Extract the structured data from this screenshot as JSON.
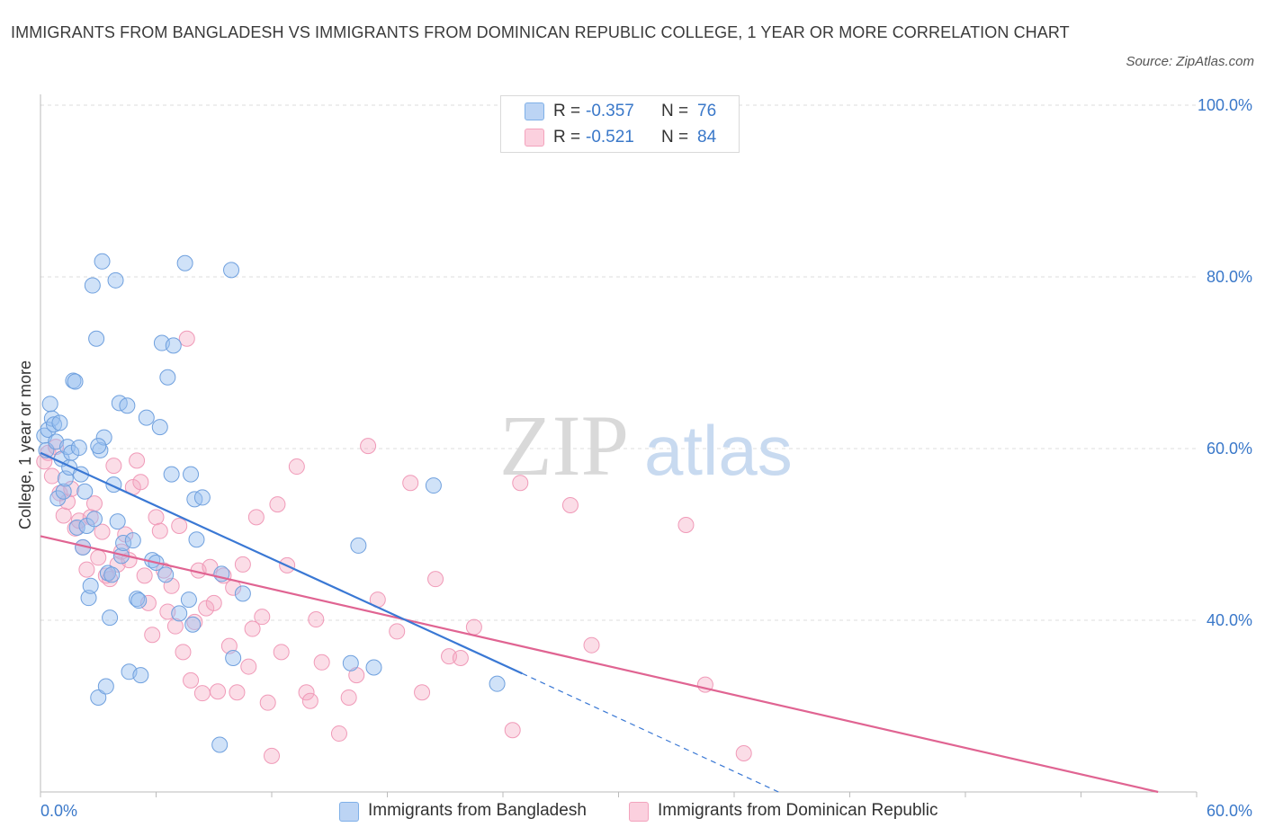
{
  "title": "IMMIGRANTS FROM BANGLADESH VS IMMIGRANTS FROM DOMINICAN REPUBLIC COLLEGE, 1 YEAR OR MORE CORRELATION CHART",
  "source": "Source: ZipAtlas.com",
  "watermark": {
    "zip": "ZIP",
    "atlas": "atlas"
  },
  "legend": {
    "rows": [
      {
        "r_label": "R =",
        "r_value": "-0.357",
        "n_label": "N =",
        "n_value": "76",
        "color": "#7fb0e8"
      },
      {
        "r_label": "R =",
        "r_value": "-0.521",
        "n_label": "N =",
        "n_value": "84",
        "color": "#f3a3bd"
      }
    ]
  },
  "colors": {
    "blue": "#3a78d4",
    "blue_fill": "rgba(150,190,240,0.45)",
    "pink": "#e06492",
    "pink_fill": "rgba(245,170,195,0.40)",
    "axis_label": "#3a78c9",
    "grid": "#dddddd"
  },
  "chart_data": {
    "type": "scatter",
    "title": "IMMIGRANTS FROM BANGLADESH VS IMMIGRANTS FROM DOMINICAN REPUBLIC COLLEGE, 1 YEAR OR MORE CORRELATION CHART",
    "xlabel": "",
    "ylabel": "College, 1 year or more",
    "xlim": [
      0,
      60
    ],
    "ylim": [
      20,
      100
    ],
    "x_tick_labels": [
      {
        "value": 0,
        "label": "0.0%"
      },
      {
        "value": 60,
        "label": "60.0%"
      }
    ],
    "y_tick_labels": [
      {
        "value": 100,
        "label": "100.0%"
      },
      {
        "value": 80,
        "label": "80.0%"
      },
      {
        "value": 60,
        "label": "60.0%"
      },
      {
        "value": 40,
        "label": "40.0%"
      }
    ],
    "grid": true,
    "legend_position": "bottom-center",
    "series": [
      {
        "name": "Immigrants from Bangladesh",
        "color": "#3a78d4",
        "trend": {
          "x": [
            0,
            25,
            38.3
          ],
          "y": [
            59.5,
            33.8,
            20
          ]
        },
        "points": [
          [
            0.2,
            61.5
          ],
          [
            0.3,
            59.8
          ],
          [
            0.4,
            62.2
          ],
          [
            0.5,
            65.2
          ],
          [
            0.6,
            63.5
          ],
          [
            0.7,
            62.8
          ],
          [
            0.8,
            60.8
          ],
          [
            0.9,
            54.2
          ],
          [
            1.0,
            63.0
          ],
          [
            1.1,
            58.8
          ],
          [
            1.2,
            55.0
          ],
          [
            1.3,
            56.5
          ],
          [
            1.4,
            60.2
          ],
          [
            1.5,
            57.8
          ],
          [
            1.6,
            59.5
          ],
          [
            1.7,
            67.9
          ],
          [
            1.8,
            67.8
          ],
          [
            1.9,
            50.8
          ],
          [
            2.0,
            60.1
          ],
          [
            2.1,
            57.0
          ],
          [
            2.2,
            48.5
          ],
          [
            2.3,
            55.0
          ],
          [
            2.4,
            51.0
          ],
          [
            2.5,
            42.6
          ],
          [
            2.6,
            44.0
          ],
          [
            2.7,
            79.0
          ],
          [
            2.8,
            51.8
          ],
          [
            2.9,
            72.8
          ],
          [
            3.0,
            31.0
          ],
          [
            3.1,
            59.8
          ],
          [
            3.2,
            81.8
          ],
          [
            3.3,
            61.3
          ],
          [
            3.4,
            32.3
          ],
          [
            3.5,
            45.5
          ],
          [
            3.6,
            40.3
          ],
          [
            3.7,
            45.3
          ],
          [
            3.8,
            55.8
          ],
          [
            3.9,
            79.6
          ],
          [
            4.0,
            51.5
          ],
          [
            4.1,
            65.3
          ],
          [
            4.2,
            47.5
          ],
          [
            4.3,
            49.0
          ],
          [
            4.5,
            65.0
          ],
          [
            4.6,
            34.0
          ],
          [
            4.8,
            49.3
          ],
          [
            5.0,
            42.5
          ],
          [
            5.2,
            33.6
          ],
          [
            5.5,
            63.6
          ],
          [
            5.8,
            47.0
          ],
          [
            6.0,
            46.7
          ],
          [
            6.2,
            62.5
          ],
          [
            6.3,
            72.3
          ],
          [
            6.5,
            45.3
          ],
          [
            6.6,
            68.3
          ],
          [
            6.8,
            57.0
          ],
          [
            6.9,
            72.0
          ],
          [
            7.2,
            40.8
          ],
          [
            7.5,
            81.6
          ],
          [
            7.7,
            42.4
          ],
          [
            7.8,
            57.0
          ],
          [
            7.9,
            39.5
          ],
          [
            8.0,
            54.1
          ],
          [
            8.1,
            49.4
          ],
          [
            8.4,
            54.3
          ],
          [
            9.3,
            25.5
          ],
          [
            9.4,
            45.4
          ],
          [
            9.9,
            80.8
          ],
          [
            10.0,
            35.6
          ],
          [
            10.5,
            43.1
          ],
          [
            16.1,
            35.0
          ],
          [
            16.5,
            48.7
          ],
          [
            17.3,
            34.5
          ],
          [
            20.4,
            55.7
          ],
          [
            23.7,
            32.6
          ],
          [
            3.0,
            60.3
          ],
          [
            5.1,
            42.3
          ]
        ]
      },
      {
        "name": "Immigrants from Dominican Republic",
        "color": "#e06492",
        "trend": {
          "x": [
            0,
            58
          ],
          "y": [
            49.8,
            20
          ]
        },
        "points": [
          [
            0.2,
            58.5
          ],
          [
            0.4,
            59.5
          ],
          [
            0.6,
            56.8
          ],
          [
            0.8,
            60.2
          ],
          [
            1.0,
            54.8
          ],
          [
            1.2,
            52.2
          ],
          [
            1.4,
            53.8
          ],
          [
            1.6,
            55.3
          ],
          [
            1.8,
            50.7
          ],
          [
            2.0,
            51.6
          ],
          [
            2.2,
            48.5
          ],
          [
            2.4,
            45.9
          ],
          [
            2.6,
            52.0
          ],
          [
            2.8,
            53.6
          ],
          [
            3.0,
            47.3
          ],
          [
            3.2,
            50.3
          ],
          [
            3.4,
            45.2
          ],
          [
            3.6,
            44.8
          ],
          [
            3.8,
            58.0
          ],
          [
            4.0,
            46.5
          ],
          [
            4.2,
            48.0
          ],
          [
            4.4,
            50.0
          ],
          [
            4.6,
            47.0
          ],
          [
            4.8,
            55.5
          ],
          [
            5.0,
            58.6
          ],
          [
            5.2,
            56.1
          ],
          [
            5.4,
            45.2
          ],
          [
            5.6,
            42.0
          ],
          [
            5.8,
            38.3
          ],
          [
            6.0,
            52.0
          ],
          [
            6.2,
            50.4
          ],
          [
            6.4,
            45.8
          ],
          [
            6.6,
            41.0
          ],
          [
            6.8,
            44.0
          ],
          [
            7.0,
            39.3
          ],
          [
            7.2,
            51.0
          ],
          [
            7.4,
            36.3
          ],
          [
            7.6,
            72.8
          ],
          [
            7.8,
            33.0
          ],
          [
            8.0,
            39.8
          ],
          [
            8.2,
            45.8
          ],
          [
            8.4,
            31.5
          ],
          [
            8.6,
            41.4
          ],
          [
            8.8,
            46.2
          ],
          [
            9.0,
            42.0
          ],
          [
            9.2,
            31.7
          ],
          [
            9.5,
            45.2
          ],
          [
            9.8,
            37.0
          ],
          [
            10.0,
            43.8
          ],
          [
            10.2,
            31.6
          ],
          [
            10.5,
            46.5
          ],
          [
            10.8,
            34.6
          ],
          [
            11.0,
            39.0
          ],
          [
            11.2,
            52.0
          ],
          [
            11.5,
            40.4
          ],
          [
            11.8,
            30.4
          ],
          [
            12.0,
            24.2
          ],
          [
            12.3,
            53.5
          ],
          [
            12.5,
            36.3
          ],
          [
            12.8,
            46.4
          ],
          [
            13.3,
            57.9
          ],
          [
            13.8,
            31.6
          ],
          [
            14.0,
            30.6
          ],
          [
            14.3,
            40.1
          ],
          [
            14.6,
            35.1
          ],
          [
            15.5,
            26.8
          ],
          [
            16.0,
            31.0
          ],
          [
            16.4,
            33.6
          ],
          [
            17.0,
            60.3
          ],
          [
            17.5,
            42.4
          ],
          [
            18.5,
            38.7
          ],
          [
            19.2,
            56.0
          ],
          [
            19.8,
            31.6
          ],
          [
            20.5,
            44.8
          ],
          [
            21.2,
            35.8
          ],
          [
            21.8,
            35.6
          ],
          [
            22.5,
            39.2
          ],
          [
            24.5,
            27.2
          ],
          [
            24.9,
            56.0
          ],
          [
            27.5,
            53.4
          ],
          [
            28.6,
            37.1
          ],
          [
            33.5,
            51.1
          ],
          [
            34.5,
            32.5
          ],
          [
            36.5,
            24.5
          ]
        ]
      }
    ]
  },
  "bottom_legend": [
    {
      "label": "Immigrants from Bangladesh",
      "color": "#7fb0e8"
    },
    {
      "label": "Immigrants from Dominican Republic",
      "color": "#f3a3bd"
    }
  ]
}
